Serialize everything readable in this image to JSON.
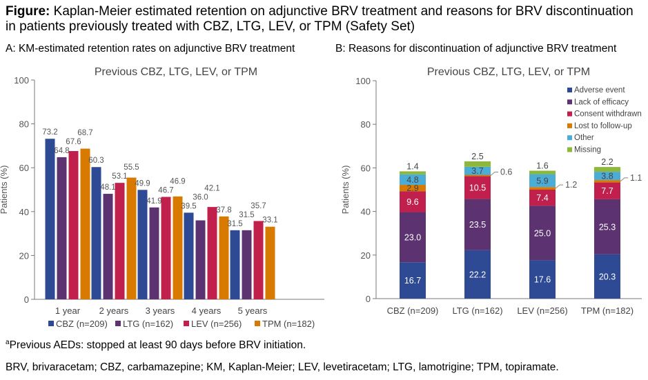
{
  "title_prefix": "Figure:",
  "title": "Kaplan-Meier estimated retention on adjunctive BRV treatment and reasons for BRV discontinuation in patients previously treated with CBZ, LTG, LEV, or TPM (Safety Set)",
  "footnote_marker": "a",
  "footnote": "Previous AEDs: stopped at least 90 days before BRV initiation.",
  "abbreviations": "BRV, brivaracetam; CBZ, carbamazepine; KM, Kaplan-Meier; LEV, levetiracetam; LTG, lamotrigine; TPM, topiramate.",
  "chart_data": [
    {
      "type": "bar",
      "panel_label": "A: KM-estimated retention rates on adjunctive BRV treatment",
      "title": "Previous CBZ, LTG, LEV, or TPM",
      "ylabel": "Patients (%)",
      "ylim": [
        0,
        100
      ],
      "yticks": [
        "0",
        "20",
        "40",
        "60",
        "80",
        "100"
      ],
      "categories": [
        "1 year",
        "2 years",
        "3 years",
        "4 years",
        "5 years"
      ],
      "legend_position": "bottom",
      "series": [
        {
          "name": "CBZ (n=209)",
          "color": "#2E4A94",
          "values": [
            73.2,
            60.3,
            49.9,
            39.5,
            31.5
          ],
          "labels": [
            "73.2",
            "60.3",
            "49.9",
            "39.5",
            "31.5"
          ]
        },
        {
          "name": "LTG (n=162)",
          "color": "#5C3370",
          "values": [
            64.8,
            48.1,
            41.9,
            36.0,
            31.5
          ],
          "labels": [
            "64.8",
            "48.1",
            "41.9",
            "36.0",
            "31.5"
          ]
        },
        {
          "name": "LEV (n=256)",
          "color": "#C0204B",
          "values": [
            67.6,
            53.1,
            46.7,
            42.1,
            35.7
          ],
          "labels": [
            "67.6",
            "53.1",
            "46.7",
            "42.1",
            "35.7"
          ]
        },
        {
          "name": "TPM (n=182)",
          "color": "#D97A00",
          "values": [
            68.7,
            55.5,
            46.9,
            37.8,
            33.1
          ],
          "labels": [
            "68.7",
            "55.5",
            "46.9",
            "37.8",
            "33.1"
          ]
        }
      ]
    },
    {
      "type": "bar",
      "stacked": true,
      "panel_label": "B: Reasons for discontinuation of adjunctive BRV treatment",
      "title": "Previous CBZ, LTG, LEV, or TPM",
      "ylabel": "Patients (%)",
      "ylim": [
        0,
        100
      ],
      "yticks": [
        "0",
        "20",
        "40",
        "60",
        "80",
        "100"
      ],
      "categories": [
        "CBZ (n=209)",
        "LTG (n=162)",
        "LEV (n=256)",
        "TPM (n=182)"
      ],
      "legend_position": "top-right",
      "series": [
        {
          "name": "Adverse event",
          "color": "#2E4A94",
          "values": [
            16.7,
            22.2,
            17.6,
            20.3
          ],
          "labels": [
            "16.7",
            "22.2",
            "17.6",
            "20.3"
          ]
        },
        {
          "name": "Lack of efficacy",
          "color": "#5C3370",
          "values": [
            23.0,
            23.5,
            25.0,
            25.3
          ],
          "labels": [
            "23.0",
            "23.5",
            "25.0",
            "25.3"
          ]
        },
        {
          "name": "Consent withdrawn",
          "color": "#C0204B",
          "values": [
            9.6,
            10.5,
            7.4,
            7.7
          ],
          "labels": [
            "9.6",
            "10.5",
            "7.4",
            "7.7"
          ]
        },
        {
          "name": "Lost to follow-up",
          "color": "#D97A00",
          "values": [
            2.9,
            0.6,
            1.2,
            1.1
          ],
          "labels": [
            "2.9",
            "0.6",
            "1.2",
            "1.1"
          ]
        },
        {
          "name": "Other",
          "color": "#4BACD6",
          "values": [
            4.8,
            3.7,
            5.9,
            3.8
          ],
          "labels": [
            "4.8",
            "3.7",
            "5.9",
            "3.8"
          ]
        },
        {
          "name": "Missing",
          "color": "#8DB83C",
          "values": [
            1.4,
            2.5,
            1.6,
            2.2
          ],
          "labels": [
            "1.4",
            "2.5",
            "1.6",
            "2.2"
          ]
        }
      ]
    }
  ]
}
